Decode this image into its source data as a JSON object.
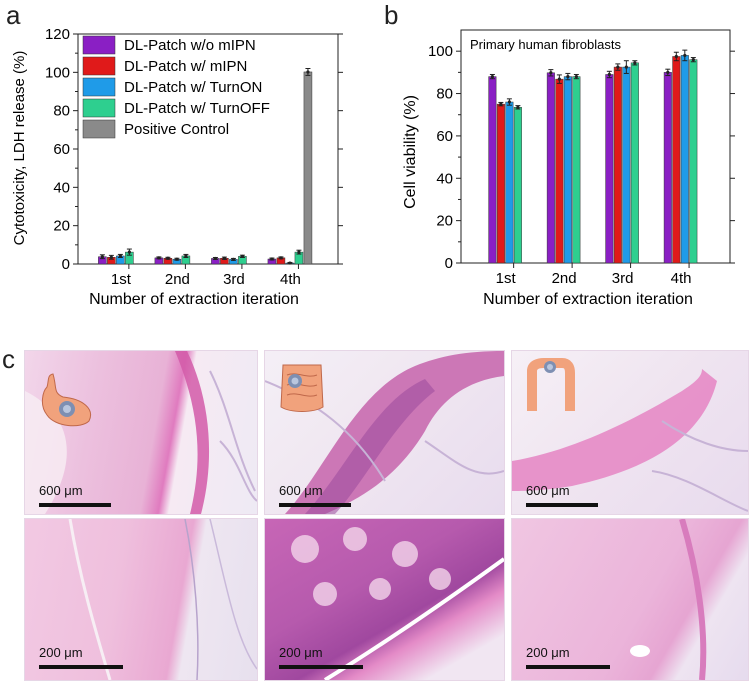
{
  "panels": {
    "a": "a",
    "b": "b",
    "c": "c"
  },
  "chart_data": [
    {
      "type": "bar",
      "xlabel": "Number of extraction iteration",
      "ylabel": "Cytotoxicity, LDH release (%)",
      "ylim": [
        0,
        120
      ],
      "yticks": [
        0,
        20,
        40,
        60,
        80,
        100,
        120
      ],
      "categories": [
        "1st",
        "2nd",
        "3rd",
        "4th"
      ],
      "legend": "top-left",
      "series": [
        {
          "name": "DL-Patch w/o mIPN",
          "color": "#8a1fc4",
          "values": [
            3.8,
            3.2,
            2.9,
            2.6
          ],
          "errors": [
            1.0,
            0.5,
            0.5,
            0.5
          ]
        },
        {
          "name": "DL-Patch w/ mIPN",
          "color": "#e01a1a",
          "values": [
            3.5,
            3.0,
            3.0,
            3.2
          ],
          "errors": [
            1.0,
            0.5,
            0.6,
            0.5
          ]
        },
        {
          "name": "DL-Patch w/ TurnON",
          "color": "#1f9be8",
          "values": [
            4.2,
            2.5,
            2.4,
            0.5
          ],
          "errors": [
            0.8,
            0.5,
            0.5,
            0.3
          ]
        },
        {
          "name": "DL-Patch w/ TurnOFF",
          "color": "#2ecf8f",
          "values": [
            6.2,
            4.2,
            4.0,
            6.2
          ],
          "errors": [
            1.6,
            0.8,
            0.6,
            1.0
          ]
        },
        {
          "name": "Positive Control",
          "color": "#8a8a8a",
          "values": [
            null,
            null,
            null,
            100.2
          ],
          "errors": [
            0,
            0,
            0,
            1.8
          ]
        }
      ]
    },
    {
      "type": "bar",
      "xlabel": "Number of extraction iteration",
      "ylabel": "Cell viability (%)",
      "annotation": "Primary human fibroblasts",
      "ylim": [
        0,
        110
      ],
      "yticks": [
        0,
        20,
        40,
        60,
        80,
        100
      ],
      "categories": [
        "1st",
        "2nd",
        "3rd",
        "4th"
      ],
      "series": [
        {
          "color": "#8a1fc4",
          "values": [
            88.0,
            89.8,
            89.0,
            90.0
          ],
          "errors": [
            1.0,
            1.5,
            1.5,
            1.5
          ]
        },
        {
          "color": "#e01a1a",
          "values": [
            75.0,
            86.8,
            92.5,
            97.5
          ],
          "errors": [
            0.8,
            2.0,
            1.5,
            2.0
          ]
        },
        {
          "color": "#1f9be8",
          "values": [
            76.0,
            88.0,
            92.5,
            98.0
          ],
          "errors": [
            1.5,
            1.5,
            3.0,
            2.5
          ]
        },
        {
          "color": "#2ecf8f",
          "values": [
            73.5,
            88.0,
            94.5,
            96.0
          ],
          "errors": [
            0.8,
            1.0,
            1.0,
            1.0
          ]
        }
      ]
    }
  ],
  "histology": {
    "top_row": [
      {
        "scale": "600 μm",
        "organ": "stomach-icon"
      },
      {
        "scale": "600 μm",
        "organ": "small-intestine-icon"
      },
      {
        "scale": "600 μm",
        "organ": "colon-icon"
      }
    ],
    "bottom_row": [
      {
        "scale": "200 μm"
      },
      {
        "scale": "200 μm"
      },
      {
        "scale": "200 μm"
      }
    ]
  }
}
